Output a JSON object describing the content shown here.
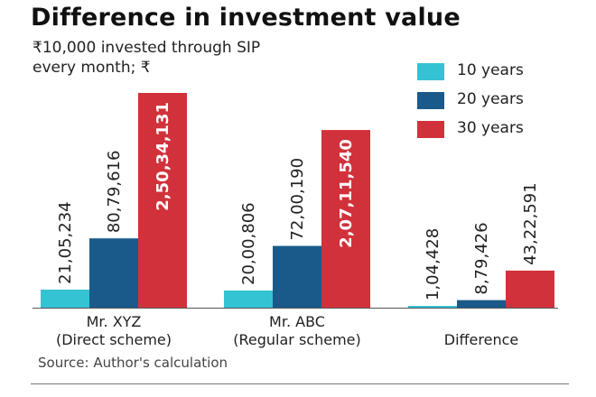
{
  "title": "Difference in investment value",
  "subtitle": "₹10,000 invested through SIP every month; ₹",
  "source": "Source: Author's calculation",
  "colors": {
    "10 years": "#34c3d3",
    "20 years": "#1a5a8a",
    "30 years": "#d1313a",
    "text": "#222222"
  },
  "chart_data": {
    "type": "bar",
    "categories": [
      [
        "Mr. XYZ",
        "(Direct scheme)"
      ],
      [
        "Mr. ABC",
        "(Regular scheme)"
      ],
      [
        "Difference"
      ]
    ],
    "series": [
      {
        "name": "10 years",
        "values": [
          2105234,
          2000806,
          104428
        ],
        "labels": [
          "21,05,234",
          "20,00,806",
          "1,04,428"
        ]
      },
      {
        "name": "20 years",
        "values": [
          8079616,
          7200190,
          879426
        ],
        "labels": [
          "80,79,616",
          "72,00,190",
          "8,79,426"
        ]
      },
      {
        "name": "30 years",
        "values": [
          25034131,
          20711540,
          4322591
        ],
        "labels": [
          "2,50,34,131",
          "2,07,11,540",
          "43,22,591"
        ]
      }
    ],
    "ylim": [
      0,
      25034131
    ],
    "grid": false,
    "legend_position": "top-right"
  }
}
